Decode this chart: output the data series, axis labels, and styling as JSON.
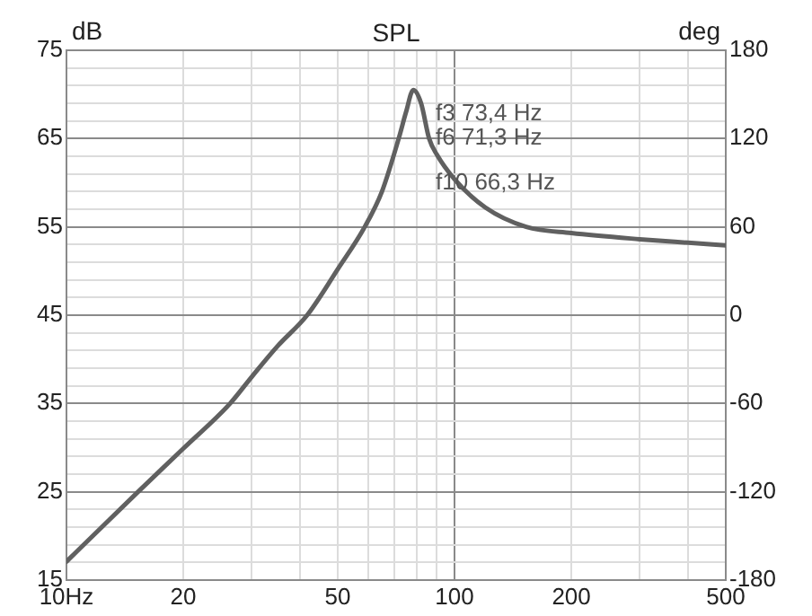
{
  "chart_data": {
    "type": "line",
    "title": "SPL",
    "ylabel": "dB",
    "y2label": "deg",
    "x": [
      10,
      12,
      15.3,
      20,
      26.4,
      30,
      35,
      41.7,
      50,
      58.7,
      65,
      71.8,
      75,
      78.3,
      82,
      86,
      90,
      100,
      120,
      153,
      200,
      300,
      400,
      500
    ],
    "series": [
      {
        "color": "#606060",
        "values": [
          17.1,
          20.5,
          25,
          29.9,
          35,
          38,
          41.5,
          45,
          50.2,
          55,
          59,
          65,
          68,
          70.5,
          69,
          65,
          63.2,
          60.4,
          57.2,
          55,
          54.3,
          53.6,
          53.2,
          52.9
        ]
      }
    ],
    "log": "x",
    "xlim": [
      10,
      500
    ],
    "xticks": [
      {
        "value": 10,
        "label": "10Hz"
      },
      20,
      {
        "value": 30,
        "label": null
      },
      {
        "value": 40,
        "label": null
      },
      50,
      {
        "value": 60,
        "label": null
      },
      {
        "value": 70,
        "label": null
      },
      {
        "value": 80,
        "label": null
      },
      {
        "value": 90,
        "label": null
      },
      100,
      200,
      {
        "value": 300,
        "label": null
      },
      {
        "value": 400,
        "label": null
      },
      500
    ],
    "ylim": [
      15,
      75
    ],
    "yticks": [
      15,
      {
        "value": 17,
        "label": null
      },
      {
        "value": 19,
        "label": null
      },
      {
        "value": 21,
        "label": null
      },
      {
        "value": 23,
        "label": null
      },
      25,
      {
        "value": 27,
        "label": null
      },
      {
        "value": 29,
        "label": null
      },
      {
        "value": 31,
        "label": null
      },
      {
        "value": 33,
        "label": null
      },
      35,
      {
        "value": 37,
        "label": null
      },
      {
        "value": 39,
        "label": null
      },
      {
        "value": 41,
        "label": null
      },
      {
        "value": 43,
        "label": null
      },
      45,
      {
        "value": 47,
        "label": null
      },
      {
        "value": 49,
        "label": null
      },
      {
        "value": 51,
        "label": null
      },
      {
        "value": 53,
        "label": null
      },
      55,
      {
        "value": 57,
        "label": null
      },
      {
        "value": 59,
        "label": null
      },
      {
        "value": 61,
        "label": null
      },
      {
        "value": 63,
        "label": null
      },
      65,
      {
        "value": 67,
        "label": null
      },
      {
        "value": 69,
        "label": null
      },
      {
        "value": 71,
        "label": null
      },
      {
        "value": 73,
        "label": null
      },
      75
    ],
    "y2lim": [
      -180,
      180
    ],
    "y2ticks": [
      -180,
      -120,
      -60,
      0,
      60,
      120,
      180
    ],
    "grid": true,
    "legend": false,
    "marker": "none",
    "line_style": "solid",
    "annotations": [
      "f3 73,4 Hz",
      "f6 71,3 Hz",
      "f10 66,3 Hz"
    ]
  }
}
